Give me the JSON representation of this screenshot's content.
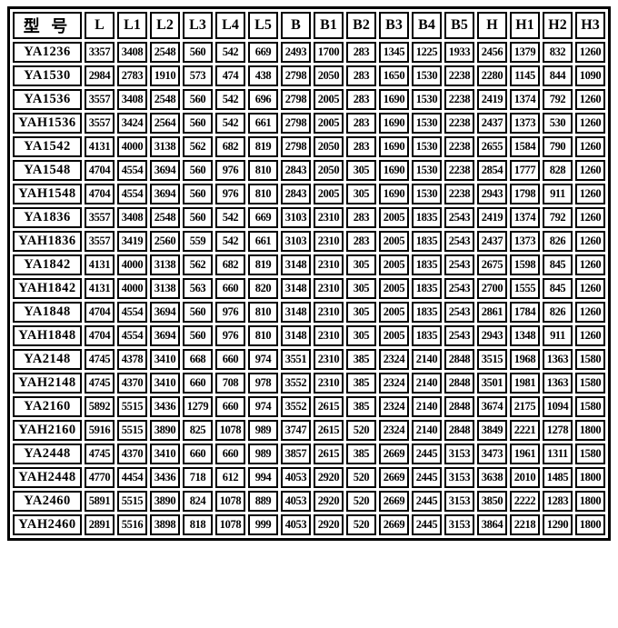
{
  "colors": {
    "border": "#000000",
    "background": "#ffffff",
    "text": "#000000"
  },
  "table": {
    "model_header": "型 号",
    "columns": [
      "L",
      "L1",
      "L2",
      "L3",
      "L4",
      "L5",
      "B",
      "B1",
      "B2",
      "B3",
      "B4",
      "B5",
      "H",
      "H1",
      "H2",
      "H3"
    ],
    "rows": [
      {
        "model": "YA1236",
        "values": [
          3357,
          3408,
          2548,
          560,
          542,
          669,
          2493,
          1700,
          283,
          1345,
          1225,
          1933,
          2456,
          1379,
          832,
          1260
        ]
      },
      {
        "model": "YA1530",
        "values": [
          2984,
          2783,
          1910,
          573,
          474,
          438,
          2798,
          2050,
          283,
          1650,
          1530,
          2238,
          2280,
          1145,
          844,
          1090
        ]
      },
      {
        "model": "YA1536",
        "values": [
          3557,
          3408,
          2548,
          560,
          542,
          696,
          2798,
          2005,
          283,
          1690,
          1530,
          2238,
          2419,
          1374,
          792,
          1260
        ]
      },
      {
        "model": "YAH1536",
        "values": [
          3557,
          3424,
          2564,
          560,
          542,
          661,
          2798,
          2005,
          283,
          1690,
          1530,
          2238,
          2437,
          1373,
          530,
          1260
        ]
      },
      {
        "model": "YA1542",
        "values": [
          4131,
          4000,
          3138,
          562,
          682,
          819,
          2798,
          2050,
          283,
          1690,
          1530,
          2238,
          2655,
          1584,
          790,
          1260
        ]
      },
      {
        "model": "YA1548",
        "values": [
          4704,
          4554,
          3694,
          560,
          976,
          810,
          2843,
          2050,
          305,
          1690,
          1530,
          2238,
          2854,
          1777,
          828,
          1260
        ]
      },
      {
        "model": "YAH1548",
        "values": [
          4704,
          4554,
          3694,
          560,
          976,
          810,
          2843,
          2005,
          305,
          1690,
          1530,
          2238,
          2943,
          1798,
          911,
          1260
        ]
      },
      {
        "model": "YA1836",
        "values": [
          3557,
          3408,
          2548,
          560,
          542,
          669,
          3103,
          2310,
          283,
          2005,
          1835,
          2543,
          2419,
          1374,
          792,
          1260
        ]
      },
      {
        "model": "YAH1836",
        "values": [
          3557,
          3419,
          2560,
          559,
          542,
          661,
          3103,
          2310,
          283,
          2005,
          1835,
          2543,
          2437,
          1373,
          826,
          1260
        ]
      },
      {
        "model": "YA1842",
        "values": [
          4131,
          4000,
          3138,
          562,
          682,
          819,
          3148,
          2310,
          305,
          2005,
          1835,
          2543,
          2675,
          1598,
          845,
          1260
        ]
      },
      {
        "model": "YAH1842",
        "values": [
          4131,
          4000,
          3138,
          563,
          660,
          820,
          3148,
          2310,
          305,
          2005,
          1835,
          2543,
          2700,
          1555,
          845,
          1260
        ]
      },
      {
        "model": "YA1848",
        "values": [
          4704,
          4554,
          3694,
          560,
          976,
          810,
          3148,
          2310,
          305,
          2005,
          1835,
          2543,
          2861,
          1784,
          826,
          1260
        ]
      },
      {
        "model": "YAH1848",
        "values": [
          4704,
          4554,
          3694,
          560,
          976,
          810,
          3148,
          2310,
          305,
          2005,
          1835,
          2543,
          2943,
          1348,
          911,
          1260
        ]
      },
      {
        "model": "YA2148",
        "values": [
          4745,
          4378,
          3410,
          668,
          660,
          974,
          3551,
          2310,
          385,
          2324,
          2140,
          2848,
          3515,
          1968,
          1363,
          1580
        ]
      },
      {
        "model": "YAH2148",
        "values": [
          4745,
          4370,
          3410,
          660,
          708,
          978,
          3552,
          2310,
          385,
          2324,
          2140,
          2848,
          3501,
          1981,
          1363,
          1580
        ]
      },
      {
        "model": "YA2160",
        "values": [
          5892,
          5515,
          3436,
          1279,
          660,
          974,
          3552,
          2615,
          385,
          2324,
          2140,
          2848,
          3674,
          2175,
          1094,
          1580
        ]
      },
      {
        "model": "YAH2160",
        "values": [
          5916,
          5515,
          3890,
          825,
          1078,
          989,
          3747,
          2615,
          520,
          2324,
          2140,
          2848,
          3849,
          2221,
          1278,
          1800
        ]
      },
      {
        "model": "YA2448",
        "values": [
          4745,
          4370,
          3410,
          660,
          660,
          989,
          3857,
          2615,
          385,
          2669,
          2445,
          3153,
          3473,
          1961,
          1311,
          1580
        ]
      },
      {
        "model": "YAH2448",
        "values": [
          4770,
          4454,
          3436,
          718,
          612,
          994,
          4053,
          2920,
          520,
          2669,
          2445,
          3153,
          3638,
          2010,
          1485,
          1800
        ]
      },
      {
        "model": "YA2460",
        "values": [
          5891,
          5515,
          3890,
          824,
          1078,
          889,
          4053,
          2920,
          520,
          2669,
          2445,
          3153,
          3850,
          2222,
          1283,
          1800
        ]
      },
      {
        "model": "YAH2460",
        "values": [
          2891,
          5516,
          3898,
          818,
          1078,
          999,
          4053,
          2920,
          520,
          2669,
          2445,
          3153,
          3864,
          2218,
          1290,
          1800
        ]
      }
    ]
  }
}
